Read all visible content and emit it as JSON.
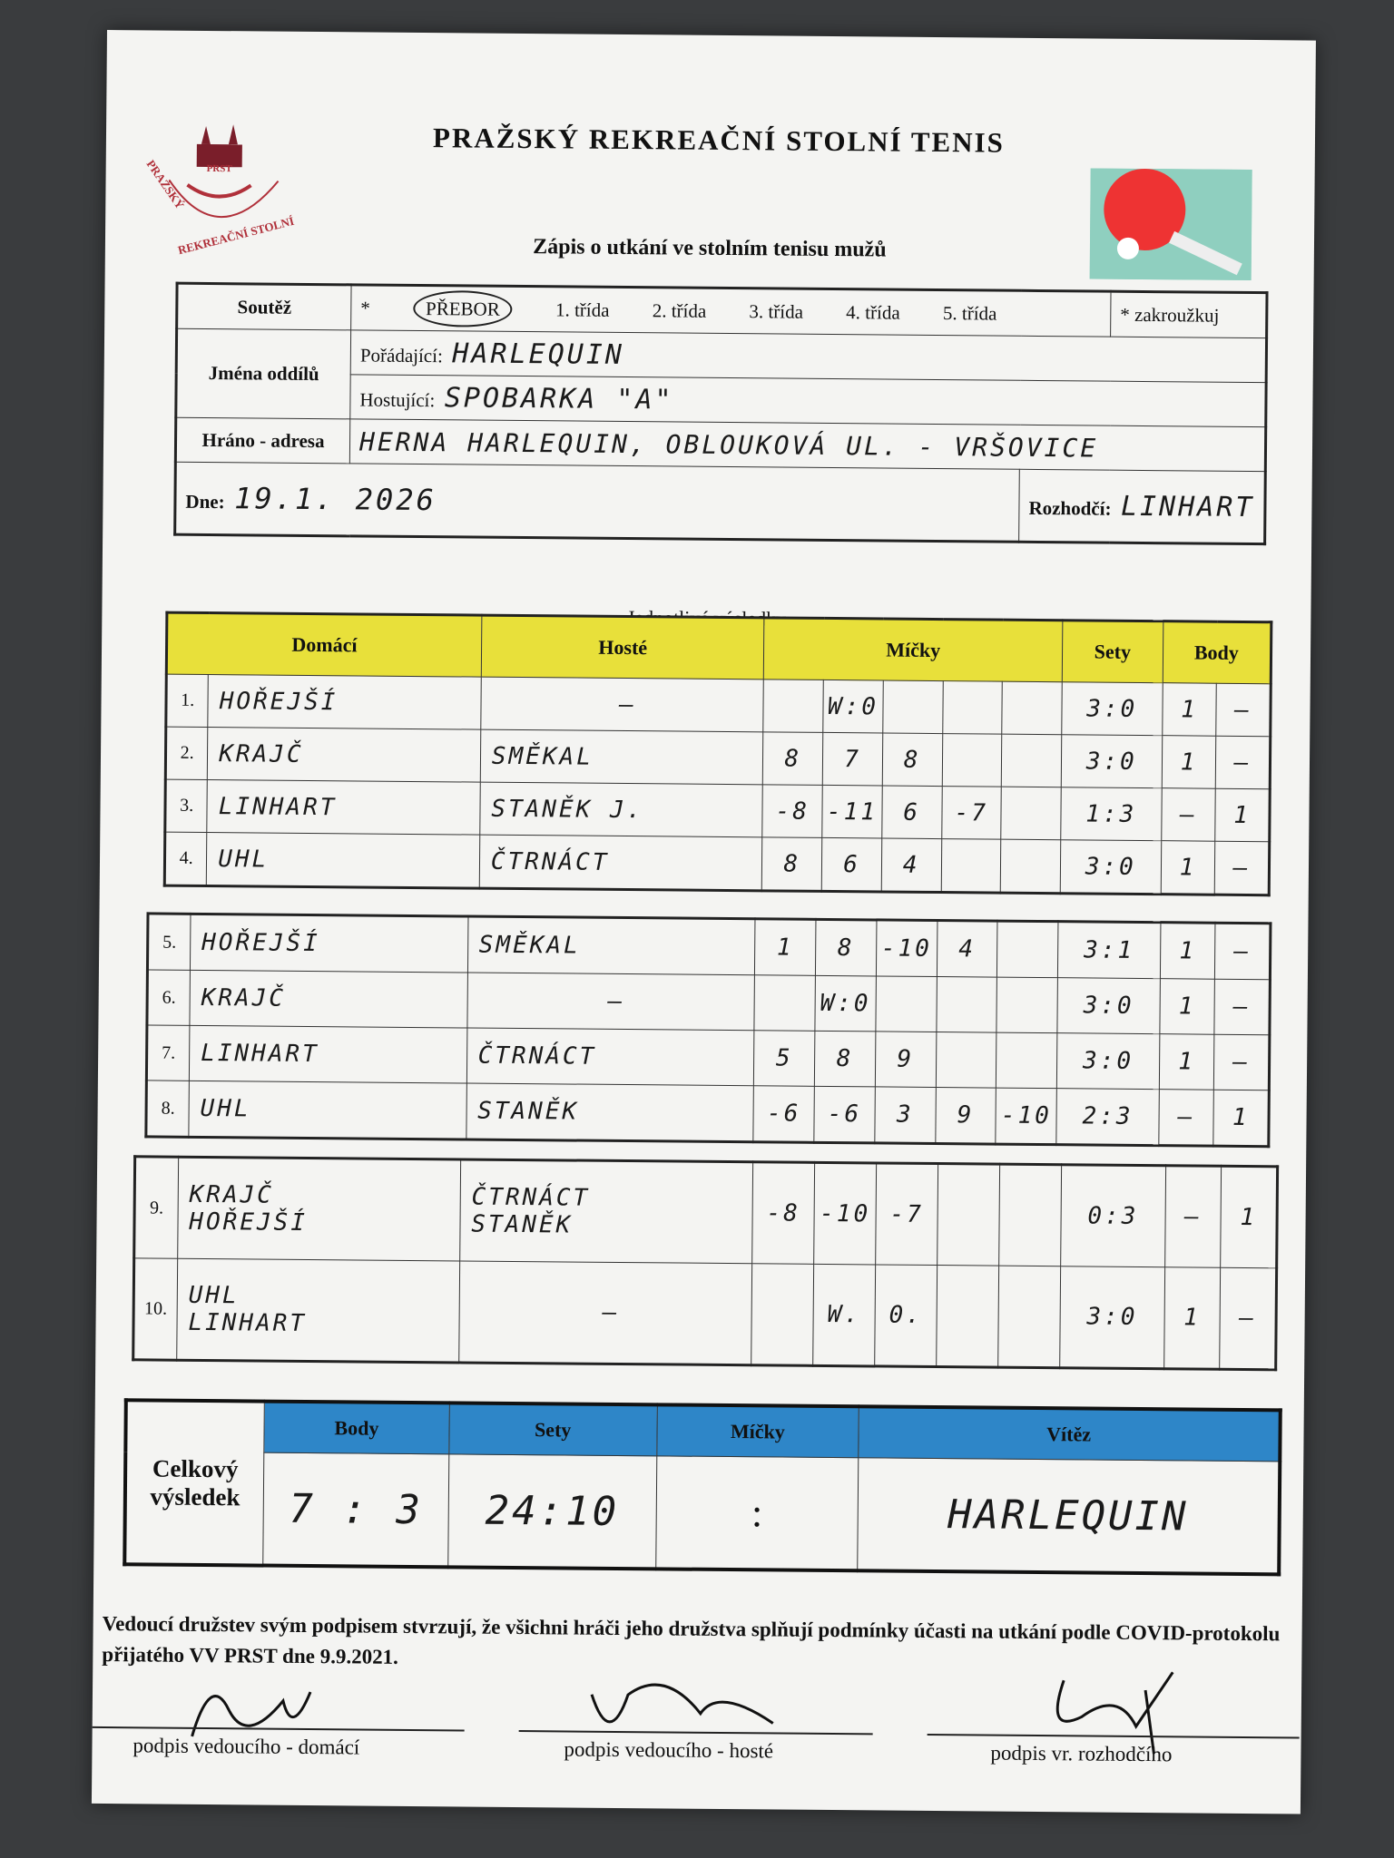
{
  "header": {
    "title": "PRAŽSKÝ REKREAČNÍ STOLNÍ TENIS",
    "subtitle": "Zápis o utkání ve stolním tenisu mužů",
    "logo_text": "PRAŽSKÝ REKREAČNÍ STOLNÍ TENIS",
    "logo_abbr": "PRST"
  },
  "info": {
    "soutez_label": "Soutěž",
    "asterisk": "*",
    "classes": [
      "PŘEBOR",
      "1. třída",
      "2. třída",
      "3. třída",
      "4. třída",
      "5. třída"
    ],
    "selected_class": "PŘEBOR",
    "zakrouzkuj": "* zakroužkuj",
    "jmena_label": "Jména oddílů",
    "poradajici_label": "Pořádající:",
    "poradajici_value": "HARLEQUIN",
    "hostujici_label": "Hostující:",
    "hostujici_value": "SPOBARKA \"A\"",
    "hrano_label": "Hráno - adresa",
    "hrano_value": "HERNA HARLEQUIN, OBLOUKOVÁ UL. - VRŠOVICE",
    "dne_label": "Dne:",
    "dne_value": "19.1. 2026",
    "rozhodci_label": "Rozhodčí:",
    "rozhodci_value": "LINHART"
  },
  "results": {
    "caption": "Jednotlivé výsledky",
    "headers": {
      "domaci": "Domácí",
      "hoste": "Hosté",
      "micky": "Míčky",
      "sety": "Sety",
      "body": "Body"
    },
    "blocks": [
      [
        {
          "n": "1.",
          "home": [
            "HOŘEJŠÍ"
          ],
          "away": [
            "—"
          ],
          "balls": [
            "",
            "W:0",
            "",
            "",
            ""
          ],
          "sets": "3:0",
          "bh": "1",
          "ba": "—"
        },
        {
          "n": "2.",
          "home": [
            "KRAJČ"
          ],
          "away": [
            "SMĚKAL"
          ],
          "balls": [
            "8",
            "7",
            "8",
            "",
            ""
          ],
          "sets": "3:0",
          "bh": "1",
          "ba": "—"
        },
        {
          "n": "3.",
          "home": [
            "LINHART"
          ],
          "away": [
            "STANĚK J."
          ],
          "balls": [
            "-8",
            "-11",
            "6",
            "-7",
            ""
          ],
          "sets": "1:3",
          "bh": "—",
          "ba": "1"
        },
        {
          "n": "4.",
          "home": [
            "UHL"
          ],
          "away": [
            "ČTRNÁCT"
          ],
          "balls": [
            "8",
            "6",
            "4",
            "",
            ""
          ],
          "sets": "3:0",
          "bh": "1",
          "ba": "—"
        }
      ],
      [
        {
          "n": "5.",
          "home": [
            "HOŘEJŠÍ"
          ],
          "away": [
            "SMĚKAL"
          ],
          "balls": [
            "1",
            "8",
            "-10",
            "4",
            ""
          ],
          "sets": "3:1",
          "bh": "1",
          "ba": "—"
        },
        {
          "n": "6.",
          "home": [
            "KRAJČ"
          ],
          "away": [
            "—"
          ],
          "balls": [
            "",
            "W:0",
            "",
            "",
            ""
          ],
          "sets": "3:0",
          "bh": "1",
          "ba": "—"
        },
        {
          "n": "7.",
          "home": [
            "LINHART"
          ],
          "away": [
            "ČTRNÁCT"
          ],
          "balls": [
            "5",
            "8",
            "9",
            "",
            ""
          ],
          "sets": "3:0",
          "bh": "1",
          "ba": "—"
        },
        {
          "n": "8.",
          "home": [
            "UHL"
          ],
          "away": [
            "STANĚK"
          ],
          "balls": [
            "-6",
            "-6",
            "3",
            "9",
            "-10"
          ],
          "sets": "2:3",
          "bh": "—",
          "ba": "1"
        }
      ],
      [
        {
          "n": "9.",
          "home": [
            "KRAJČ",
            "HOŘEJŠÍ"
          ],
          "away": [
            "ČTRNÁCT",
            "STANĚK"
          ],
          "balls": [
            "-8",
            "-10",
            "-7",
            "",
            ""
          ],
          "sets": "0:3",
          "bh": "—",
          "ba": "1"
        },
        {
          "n": "10.",
          "home": [
            "UHL",
            "LINHART"
          ],
          "away": [
            "—"
          ],
          "balls": [
            "",
            "W.",
            "0.",
            "",
            ""
          ],
          "sets": "3:0",
          "bh": "1",
          "ba": "—"
        }
      ]
    ]
  },
  "total": {
    "label": "Celkový výsledek",
    "headers": {
      "body": "Body",
      "sety": "Sety",
      "micky": "Míčky",
      "vitez": "Vítěz"
    },
    "body": "7 : 3",
    "sety": "24:10",
    "micky": ":",
    "vitez": "HARLEQUIN"
  },
  "footer": {
    "covid_text": "Vedoucí družstev svým podpisem stvrzují, že všichni hráči jeho družstva splňují podmínky účasti na utkání podle COVID-protokolu přijatého VV PRST dne 9.9.2021.",
    "sig_home": "podpis vedoucího - domácí",
    "sig_away": "podpis vedoucího - hosté",
    "sig_ref": "podpis vr. rozhodčího"
  },
  "colors": {
    "header_yellow": "#e8e03a",
    "header_blue": "#2e86c8",
    "logo_red": "#b0303a"
  }
}
